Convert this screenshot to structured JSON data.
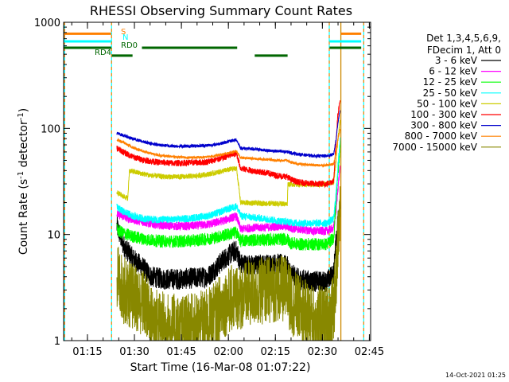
{
  "chart_data": {
    "type": "line",
    "title": "RHESSI Observing Summary Count Rates",
    "xlabel": "Start Time (16-Mar-08 01:07:22)",
    "ylabel_main": "Count Rate (s",
    "ylabel_sup1": "-1",
    "ylabel_mid": " detector",
    "ylabel_sup2": "-1",
    "ylabel_end": ")",
    "footer": "14-Oct-2021 01:25",
    "y_scale": "log",
    "ylim": [
      1,
      1000
    ],
    "xlim_minutes": [
      0,
      98
    ],
    "x_start": "01:07:22",
    "x_ticks": [
      {
        "label": "01:15",
        "t": 7.6
      },
      {
        "label": "01:30",
        "t": 22.6
      },
      {
        "label": "01:45",
        "t": 37.6
      },
      {
        "label": "02:00",
        "t": 52.6
      },
      {
        "label": "02:15",
        "t": 67.6
      },
      {
        "label": "02:30",
        "t": 82.6
      },
      {
        "label": "02:45",
        "t": 97.6
      }
    ],
    "y_ticks": [
      {
        "label": "1",
        "value": 1
      },
      {
        "label": "10",
        "value": 10
      },
      {
        "label": "100",
        "value": 100
      },
      {
        "label": "1000",
        "value": 1000
      }
    ],
    "legend": {
      "header": [
        "Det 1,3,4,5,6,9,",
        "FDecim 1, Att 0"
      ],
      "position": "right"
    },
    "series": [
      {
        "name": "3 - 6 keV",
        "color": "#000000",
        "noise": 0.1,
        "points": [
          [
            17.0,
            12
          ],
          [
            19,
            8
          ],
          [
            22,
            6
          ],
          [
            25,
            5
          ],
          [
            28,
            4
          ],
          [
            32,
            3.8
          ],
          [
            37,
            3.8
          ],
          [
            42,
            3.9
          ],
          [
            46,
            4.0
          ],
          [
            48,
            4.6
          ],
          [
            51,
            5.8
          ],
          [
            54,
            6.8
          ],
          [
            55.2,
            7.0
          ],
          [
            56.5,
            5.3
          ],
          [
            60,
            5.1
          ],
          [
            65,
            5.2
          ],
          [
            68,
            5.3
          ],
          [
            70,
            5.2
          ],
          [
            71.4,
            5.0
          ],
          [
            72.5,
            4.3
          ],
          [
            75,
            3.8
          ],
          [
            80,
            3.6
          ],
          [
            84,
            3.6
          ],
          [
            86.2,
            4.3
          ],
          [
            87.0,
            9
          ],
          [
            87.6,
            14
          ],
          [
            88.3,
            22
          ]
        ]
      },
      {
        "name": "6 - 12 keV",
        "color": "#ff00ff",
        "noise": 0.04,
        "points": [
          [
            17.0,
            15.5
          ],
          [
            19,
            14.8
          ],
          [
            22,
            13.8
          ],
          [
            26,
            13.0
          ],
          [
            30,
            12.3
          ],
          [
            35,
            12.0
          ],
          [
            40,
            12.0
          ],
          [
            45,
            12.3
          ],
          [
            48,
            12.8
          ],
          [
            51,
            13.5
          ],
          [
            54,
            14.5
          ],
          [
            55.2,
            14.8
          ],
          [
            56.5,
            11.2
          ],
          [
            60,
            11.6
          ],
          [
            65,
            11.7
          ],
          [
            68,
            11.9
          ],
          [
            71.4,
            11.9
          ],
          [
            72.5,
            11.4
          ],
          [
            75,
            11.2
          ],
          [
            80,
            10.8
          ],
          [
            84,
            10.8
          ],
          [
            86.2,
            11.5
          ],
          [
            87.0,
            17
          ],
          [
            87.6,
            28
          ],
          [
            88.3,
            45
          ]
        ]
      },
      {
        "name": "12 - 25 keV",
        "color": "#00ff00",
        "noise": 0.06,
        "points": [
          [
            17.0,
            11
          ],
          [
            19,
            10.3
          ],
          [
            22,
            9.6
          ],
          [
            26,
            9.0
          ],
          [
            30,
            8.7
          ],
          [
            35,
            8.6
          ],
          [
            40,
            8.7
          ],
          [
            45,
            9.0
          ],
          [
            48,
            9.3
          ],
          [
            51,
            9.8
          ],
          [
            54,
            10.3
          ],
          [
            55.2,
            10.5
          ],
          [
            56.5,
            8.7
          ],
          [
            60,
            8.9
          ],
          [
            65,
            8.9
          ],
          [
            68,
            9.0
          ],
          [
            71.4,
            9.0
          ],
          [
            72.5,
            8.3
          ],
          [
            75,
            8.1
          ],
          [
            80,
            8.1
          ],
          [
            84,
            8.1
          ],
          [
            86.2,
            9.3
          ],
          [
            87.0,
            22
          ],
          [
            87.6,
            40
          ],
          [
            88.3,
            70
          ]
        ]
      },
      {
        "name": "25 - 50 keV",
        "color": "#00ffff",
        "noise": 0.035,
        "points": [
          [
            17.0,
            18
          ],
          [
            19,
            16.5
          ],
          [
            22,
            15
          ],
          [
            26,
            14
          ],
          [
            30,
            13.8
          ],
          [
            35,
            13.8
          ],
          [
            40,
            14.2
          ],
          [
            45,
            14.8
          ],
          [
            48,
            15.5
          ],
          [
            51,
            16.8
          ],
          [
            54,
            18
          ],
          [
            55.2,
            18.5
          ],
          [
            56.5,
            15
          ],
          [
            60,
            14.5
          ],
          [
            65,
            14
          ],
          [
            68,
            13.5
          ],
          [
            71.4,
            13.2
          ],
          [
            72.5,
            13
          ],
          [
            75,
            12.8
          ],
          [
            80,
            12.8
          ],
          [
            84,
            12.8
          ],
          [
            86.2,
            14
          ],
          [
            87.0,
            25
          ],
          [
            87.6,
            45
          ],
          [
            88.3,
            80
          ]
        ]
      },
      {
        "name": "50 - 100 keV",
        "color": "#cccc00",
        "noise": 0.025,
        "points": [
          [
            17.0,
            25
          ],
          [
            19,
            23
          ],
          [
            20.5,
            22
          ],
          [
            21,
            40
          ],
          [
            24,
            38
          ],
          [
            28,
            36
          ],
          [
            32,
            35
          ],
          [
            37,
            35
          ],
          [
            42,
            35.5
          ],
          [
            46,
            37
          ],
          [
            49,
            38.5
          ],
          [
            52,
            40.5
          ],
          [
            55.2,
            42
          ],
          [
            56.5,
            20
          ],
          [
            60,
            19.8
          ],
          [
            65,
            19.6
          ],
          [
            70,
            19.5
          ],
          [
            71.4,
            19.3
          ],
          [
            71.6,
            30
          ],
          [
            75,
            29.5
          ],
          [
            80,
            29.5
          ],
          [
            84,
            30
          ],
          [
            86.2,
            31
          ],
          [
            87.0,
            50
          ],
          [
            87.6,
            80
          ],
          [
            88.3,
            120
          ]
        ]
      },
      {
        "name": "100 - 300 keV",
        "color": "#ff0000",
        "noise": 0.03,
        "points": [
          [
            17.0,
            65
          ],
          [
            19,
            60
          ],
          [
            22,
            54
          ],
          [
            26,
            50
          ],
          [
            30,
            48
          ],
          [
            35,
            47
          ],
          [
            40,
            47.5
          ],
          [
            45,
            48
          ],
          [
            48,
            50
          ],
          [
            51,
            53
          ],
          [
            54,
            57
          ],
          [
            55.2,
            58
          ],
          [
            56.5,
            42
          ],
          [
            60,
            40
          ],
          [
            65,
            38
          ],
          [
            68,
            36
          ],
          [
            71.4,
            35
          ],
          [
            72.5,
            33
          ],
          [
            75,
            31
          ],
          [
            80,
            30
          ],
          [
            84,
            30
          ],
          [
            86.2,
            32
          ],
          [
            87.0,
            80
          ],
          [
            87.6,
            140
          ],
          [
            88.3,
            185
          ]
        ]
      },
      {
        "name": "300 - 800 keV",
        "color": "#0000cc",
        "noise": 0.015,
        "points": [
          [
            17.0,
            90
          ],
          [
            19,
            86
          ],
          [
            22,
            80
          ],
          [
            26,
            74
          ],
          [
            30,
            70
          ],
          [
            35,
            68
          ],
          [
            40,
            68
          ],
          [
            45,
            69
          ],
          [
            48,
            70
          ],
          [
            51,
            73
          ],
          [
            54,
            77
          ],
          [
            55.2,
            78
          ],
          [
            56.5,
            65
          ],
          [
            60,
            64
          ],
          [
            65,
            62
          ],
          [
            68,
            61
          ],
          [
            71.4,
            60
          ],
          [
            72.5,
            59
          ],
          [
            75,
            57
          ],
          [
            80,
            55
          ],
          [
            84,
            55
          ],
          [
            86.2,
            57
          ],
          [
            87.0,
            80
          ],
          [
            87.6,
            115
          ],
          [
            88.3,
            150
          ]
        ]
      },
      {
        "name": "800 - 7000 keV",
        "color": "#ff8000",
        "noise": 0.012,
        "points": [
          [
            17.0,
            78
          ],
          [
            19,
            74
          ],
          [
            22,
            66
          ],
          [
            26,
            60
          ],
          [
            30,
            56
          ],
          [
            35,
            54
          ],
          [
            40,
            53
          ],
          [
            45,
            53.5
          ],
          [
            48,
            55
          ],
          [
            51,
            57
          ],
          [
            54,
            60
          ],
          [
            55.2,
            61
          ],
          [
            56.5,
            53
          ],
          [
            60,
            52
          ],
          [
            65,
            51
          ],
          [
            68,
            50
          ],
          [
            71.4,
            50
          ],
          [
            72.5,
            48
          ],
          [
            75,
            46
          ],
          [
            80,
            45
          ],
          [
            84,
            45
          ],
          [
            86.2,
            46
          ],
          [
            87.0,
            60
          ],
          [
            87.6,
            80
          ],
          [
            88.3,
            100
          ]
        ]
      },
      {
        "name": "7000 - 15000 keV",
        "color": "#888800",
        "noise": 0.32,
        "points": [
          [
            17.0,
            4
          ],
          [
            19,
            3
          ],
          [
            23,
            2.5
          ],
          [
            26,
            2.2
          ],
          [
            28,
            1.6
          ],
          [
            32,
            1.4
          ],
          [
            37,
            1.3
          ],
          [
            42,
            1.35
          ],
          [
            46,
            1.5
          ],
          [
            48,
            1.7
          ],
          [
            51,
            2.2
          ],
          [
            54,
            2.5
          ],
          [
            55.2,
            2.6
          ],
          [
            56.5,
            2.6
          ],
          [
            60,
            2.8
          ],
          [
            65,
            3
          ],
          [
            68,
            3.1
          ],
          [
            71.4,
            3.0
          ],
          [
            72.5,
            2.4
          ],
          [
            75,
            2
          ],
          [
            80,
            1.6
          ],
          [
            84,
            1.6
          ],
          [
            86.2,
            2
          ],
          [
            87.0,
            4
          ],
          [
            87.6,
            9
          ],
          [
            88.3,
            16
          ]
        ]
      }
    ],
    "vertical_markers": [
      {
        "t": 0.3,
        "color": "#00ffff"
      },
      {
        "t": 15.3,
        "color": "#00ffff"
      },
      {
        "t": 84.8,
        "color": "#00ffff"
      },
      {
        "t": 95.8,
        "color": "#00ffff"
      }
    ],
    "vertical_marker_solid": {
      "t": 88.5,
      "color": "#cc8800"
    },
    "state_bars": [
      {
        "label": "S",
        "value": 780,
        "color": "#ff8000",
        "segments": [
          [
            0,
            15.2
          ],
          [
            88.6,
            95.0
          ]
        ]
      },
      {
        "label": "N",
        "value": 660,
        "color": "#00ffff",
        "segments": [
          [
            0,
            15.2
          ],
          [
            84.9,
            95.0
          ]
        ]
      },
      {
        "label": "RD0",
        "value": 575,
        "color": "#006600",
        "segments": [
          [
            0,
            15.2
          ],
          [
            25.0,
            55.4
          ],
          [
            84.9,
            95.0
          ]
        ]
      },
      {
        "label": "RD4",
        "value": 485,
        "color": "#006600",
        "segments": [
          [
            15.4,
            22.0
          ],
          [
            61.0,
            71.5
          ]
        ]
      }
    ]
  }
}
